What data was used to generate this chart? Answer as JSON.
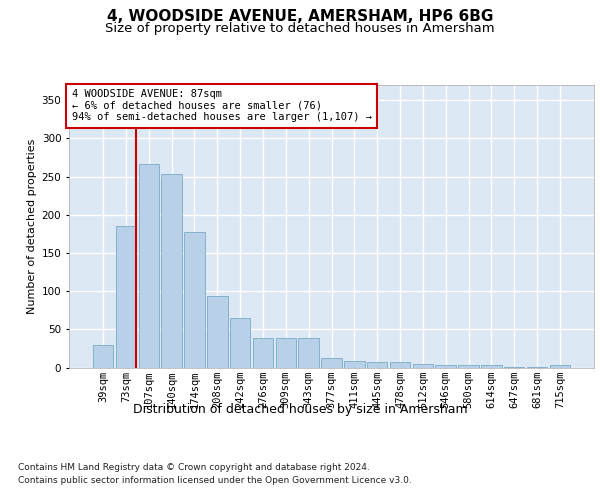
{
  "title1": "4, WOODSIDE AVENUE, AMERSHAM, HP6 6BG",
  "title2": "Size of property relative to detached houses in Amersham",
  "xlabel": "Distribution of detached houses by size in Amersham",
  "ylabel": "Number of detached properties",
  "categories": [
    "39sqm",
    "73sqm",
    "107sqm",
    "140sqm",
    "174sqm",
    "208sqm",
    "242sqm",
    "276sqm",
    "309sqm",
    "343sqm",
    "377sqm",
    "411sqm",
    "445sqm",
    "478sqm",
    "512sqm",
    "546sqm",
    "580sqm",
    "614sqm",
    "647sqm",
    "681sqm",
    "715sqm"
  ],
  "values": [
    30,
    185,
    267,
    253,
    178,
    93,
    65,
    38,
    38,
    38,
    12,
    8,
    7,
    7,
    5,
    3,
    3,
    3,
    1,
    1,
    3
  ],
  "bar_color": "#b8d0e8",
  "bar_edge_color": "#7aaac8",
  "background_color": "#dde8f5",
  "grid_color": "#ffffff",
  "annotation_text": "4 WOODSIDE AVENUE: 87sqm\n← 6% of detached houses are smaller (76)\n94% of semi-detached houses are larger (1,107) →",
  "annotation_box_edge": "#cc0000",
  "annotation_box_bg": "#ffffff",
  "redline_color": "#cc0000",
  "red_line_x": 1.42,
  "ylim": [
    0,
    370
  ],
  "yticks": [
    0,
    50,
    100,
    150,
    200,
    250,
    300,
    350
  ],
  "footnote1": "Contains HM Land Registry data © Crown copyright and database right 2024.",
  "footnote2": "Contains public sector information licensed under the Open Government Licence v3.0.",
  "title1_fontsize": 11,
  "title2_fontsize": 9.5,
  "xlabel_fontsize": 9,
  "ylabel_fontsize": 8,
  "tick_fontsize": 7.5,
  "annotation_fontsize": 7.5,
  "footnote_fontsize": 6.5
}
